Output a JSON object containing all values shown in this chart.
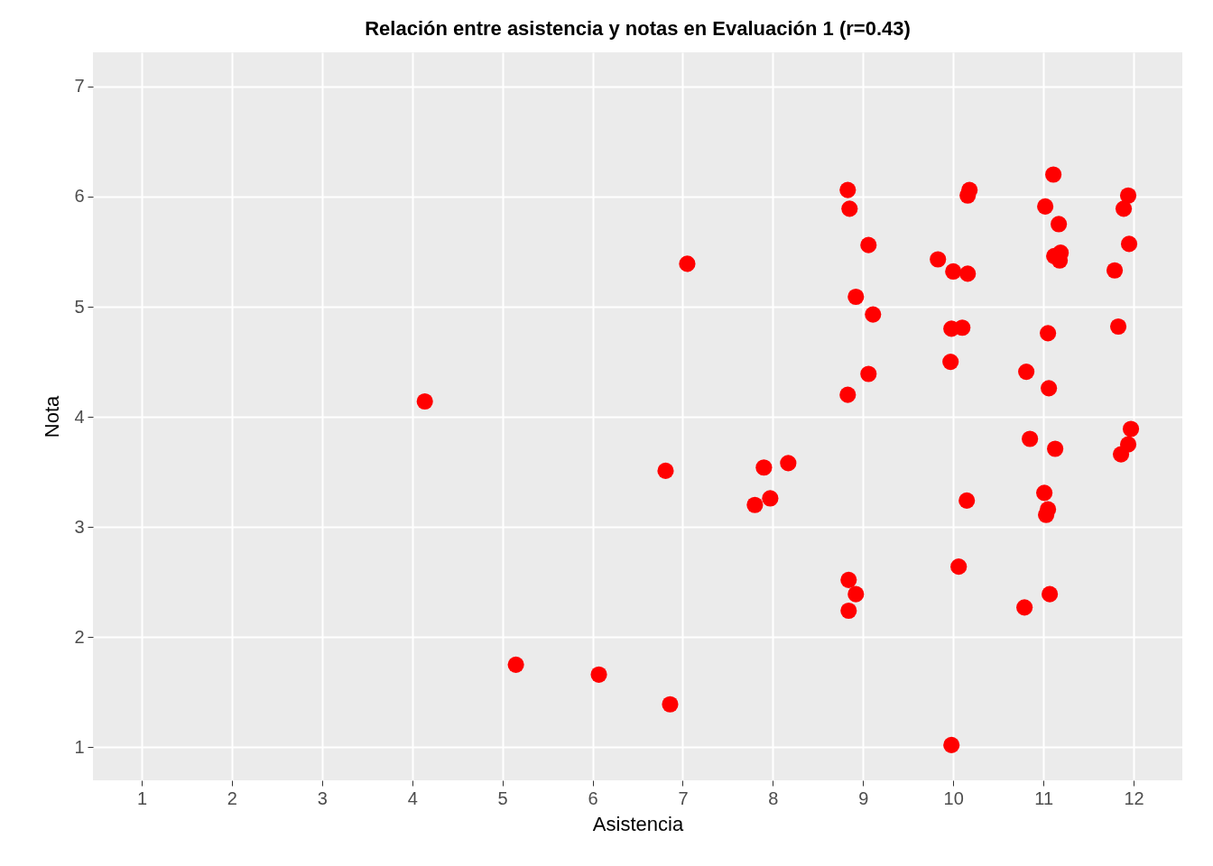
{
  "chart_data": {
    "type": "scatter",
    "title": "Relación entre asistencia y notas en Evaluación 1 (r=0.43)",
    "xlabel": "Asistencia",
    "ylabel": "Nota",
    "x": [
      4.14,
      5.15,
      6.07,
      6.86,
      6.81,
      7.05,
      7.8,
      7.97,
      7.9,
      8.17,
      8.83,
      8.85,
      9.06,
      8.92,
      9.11,
      9.06,
      8.83,
      8.84,
      8.92,
      8.84,
      9.83,
      10.0,
      10.16,
      9.98,
      10.1,
      9.97,
      10.18,
      10.16,
      10.15,
      10.06,
      9.98,
      11.11,
      11.02,
      11.17,
      11.19,
      11.12,
      11.18,
      11.05,
      10.81,
      11.06,
      10.85,
      11.13,
      11.01,
      11.05,
      11.03,
      10.79,
      11.07,
      11.94,
      11.89,
      11.95,
      11.79,
      11.83,
      11.97,
      11.94,
      11.86
    ],
    "series": [
      {
        "color": "#ff0000",
        "values": [
          4.14,
          1.75,
          1.66,
          1.39,
          3.51,
          5.39,
          3.2,
          3.26,
          3.54,
          3.58,
          6.06,
          5.89,
          5.56,
          5.09,
          4.93,
          4.39,
          4.2,
          2.52,
          2.39,
          2.24,
          5.43,
          5.32,
          5.3,
          4.8,
          4.81,
          4.5,
          6.06,
          6.01,
          3.24,
          2.64,
          1.02,
          6.2,
          5.91,
          5.75,
          5.49,
          5.46,
          5.42,
          4.76,
          4.41,
          4.26,
          3.8,
          3.71,
          3.31,
          3.16,
          3.11,
          2.27,
          2.39,
          6.01,
          5.89,
          5.57,
          5.33,
          4.82,
          3.89,
          3.75,
          3.66
        ]
      }
    ],
    "xlim": [
      0.46,
      12.54
    ],
    "ylim": [
      0.7,
      7.31
    ],
    "xticks": [
      1,
      2,
      3,
      4,
      5,
      6,
      7,
      8,
      9,
      10,
      11,
      12
    ],
    "yticks": [
      1,
      2,
      3,
      4,
      5,
      6,
      7
    ],
    "grid": true,
    "marker": "circle",
    "legend": false
  }
}
